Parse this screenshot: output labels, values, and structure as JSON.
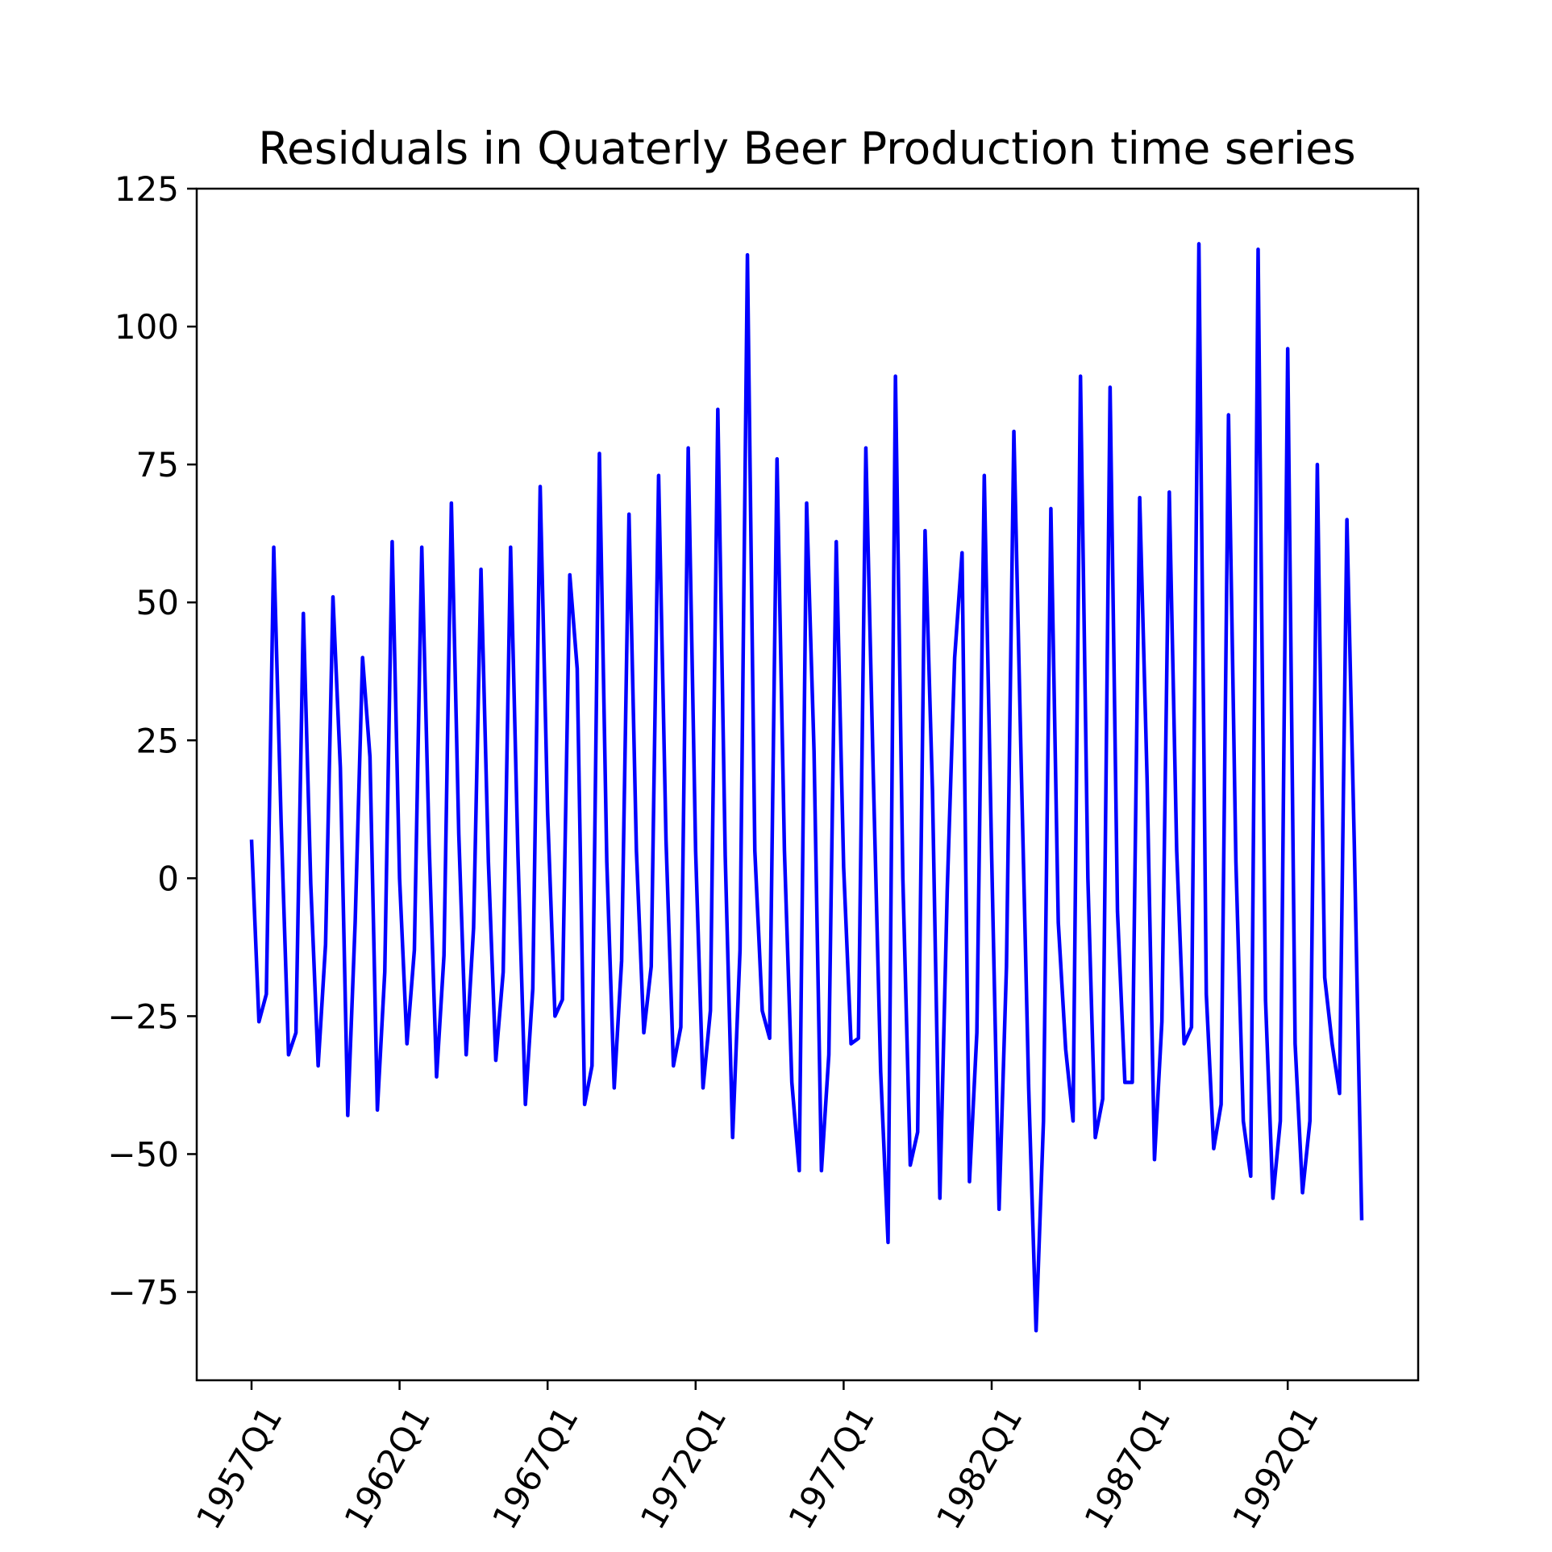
{
  "chart_data": {
    "type": "line",
    "title": "Residuals in Quaterly Beer Production time series",
    "xlabel": "",
    "ylabel": "",
    "ylim": [
      -91,
      125
    ],
    "yticks": [
      125,
      100,
      75,
      50,
      25,
      0,
      -25,
      -50,
      -75
    ],
    "ytick_labels": [
      "125",
      "100",
      "75",
      "50",
      "25",
      "0",
      "−25",
      "−50",
      "−75"
    ],
    "xticks": [
      "1957Q1",
      "1962Q1",
      "1967Q1",
      "1972Q1",
      "1977Q1",
      "1982Q1",
      "1987Q1",
      "1992Q1"
    ],
    "grid": false,
    "legend": "none",
    "series": [
      {
        "color": "#0000ff",
        "x_start": "1957Q1",
        "frequency": "quarterly",
        "values": [
          7,
          -26,
          -21,
          60,
          10,
          -32,
          -28,
          48,
          -1,
          -34,
          -12,
          51,
          20,
          -43,
          -8,
          40,
          22,
          -42,
          -17,
          61,
          0,
          -30,
          -13,
          60,
          6,
          -36,
          -14,
          68,
          8,
          -32,
          -9,
          56,
          3,
          -33,
          -17,
          60,
          4,
          -41,
          -20,
          71,
          12,
          -25,
          -22,
          55,
          38,
          -41,
          -34,
          77,
          3,
          -38,
          -15,
          66,
          5,
          -28,
          -16,
          73,
          7,
          -34,
          -27,
          78,
          5,
          -38,
          -24,
          85,
          4,
          -47,
          -13,
          113,
          5,
          -24,
          -29,
          76,
          5,
          -37,
          -53,
          68,
          23,
          -53,
          -32,
          61,
          2,
          -30,
          -29,
          78,
          19,
          -35,
          -66,
          91,
          0,
          -52,
          -46,
          63,
          16,
          -58,
          -2,
          40,
          59,
          -55,
          -28,
          73,
          4,
          -60,
          -16,
          81,
          20,
          -38,
          -82,
          -44,
          67,
          -8,
          -31,
          -44,
          91,
          0,
          -47,
          -40,
          89,
          -6,
          -37,
          -37,
          69,
          18,
          -51,
          -26,
          70,
          5,
          -30,
          -27,
          115,
          -21,
          -49,
          -41,
          84,
          3,
          -44,
          -54,
          114,
          -22,
          -58,
          -44,
          96,
          -30,
          -57,
          -44,
          75,
          -18,
          -30,
          -39,
          65,
          6,
          -62
        ]
      }
    ]
  }
}
